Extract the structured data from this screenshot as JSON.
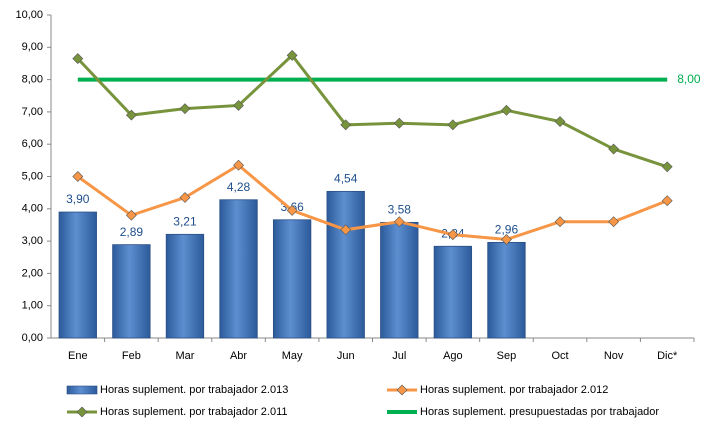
{
  "chart_data": {
    "type": "bar-line",
    "categories": [
      "Ene",
      "Feb",
      "Mar",
      "Abr",
      "May",
      "Jun",
      "Jul",
      "Ago",
      "Sep",
      "Oct",
      "Nov",
      "Dic*"
    ],
    "ylim": [
      0,
      10
    ],
    "yticks": [
      {
        "value": 0,
        "label": "0,00"
      },
      {
        "value": 1,
        "label": "1,00"
      },
      {
        "value": 2,
        "label": "2,00"
      },
      {
        "value": 3,
        "label": "3,00"
      },
      {
        "value": 4,
        "label": "4,00"
      },
      {
        "value": 5,
        "label": "5,00"
      },
      {
        "value": 6,
        "label": "6,00"
      },
      {
        "value": 7,
        "label": "7,00"
      },
      {
        "value": 8,
        "label": "8,00"
      },
      {
        "value": 9,
        "label": "9,00"
      },
      {
        "value": 10,
        "label": "10,00"
      }
    ],
    "series": [
      {
        "name": "Horas suplement. por trabajador 2.013",
        "kind": "bar",
        "color": "#3a6fb5",
        "values": [
          3.9,
          2.89,
          3.21,
          4.28,
          3.66,
          4.54,
          3.58,
          2.84,
          2.96,
          null,
          null,
          null
        ],
        "value_labels": [
          "3,90",
          "2,89",
          "3,21",
          "4,28",
          "3,66",
          "4,54",
          "3,58",
          "2,84",
          "2,96",
          null,
          null,
          null
        ]
      },
      {
        "name": "Horas suplement. por trabajador 2.012",
        "kind": "line",
        "marker": "diamond",
        "color": "#f79646",
        "values": [
          5.0,
          3.8,
          4.35,
          5.35,
          3.95,
          3.35,
          3.6,
          3.2,
          3.05,
          3.6,
          3.6,
          4.25
        ]
      },
      {
        "name": "Horas suplement. por trabajador 2.011",
        "kind": "line",
        "marker": "diamond",
        "color": "#77933c",
        "values": [
          8.65,
          6.9,
          7.1,
          7.2,
          8.75,
          6.6,
          6.65,
          6.6,
          7.05,
          6.7,
          5.85,
          5.3
        ]
      },
      {
        "name": "Horas suplement. presupuestadas por trabajador",
        "kind": "line",
        "marker": "none",
        "color": "#00b050",
        "values": [
          8,
          8,
          8,
          8,
          8,
          8,
          8,
          8,
          8,
          8,
          8,
          8
        ],
        "value_labels": [
          null,
          null,
          null,
          null,
          null,
          null,
          null,
          null,
          null,
          null,
          null,
          "8,00"
        ]
      }
    ]
  }
}
